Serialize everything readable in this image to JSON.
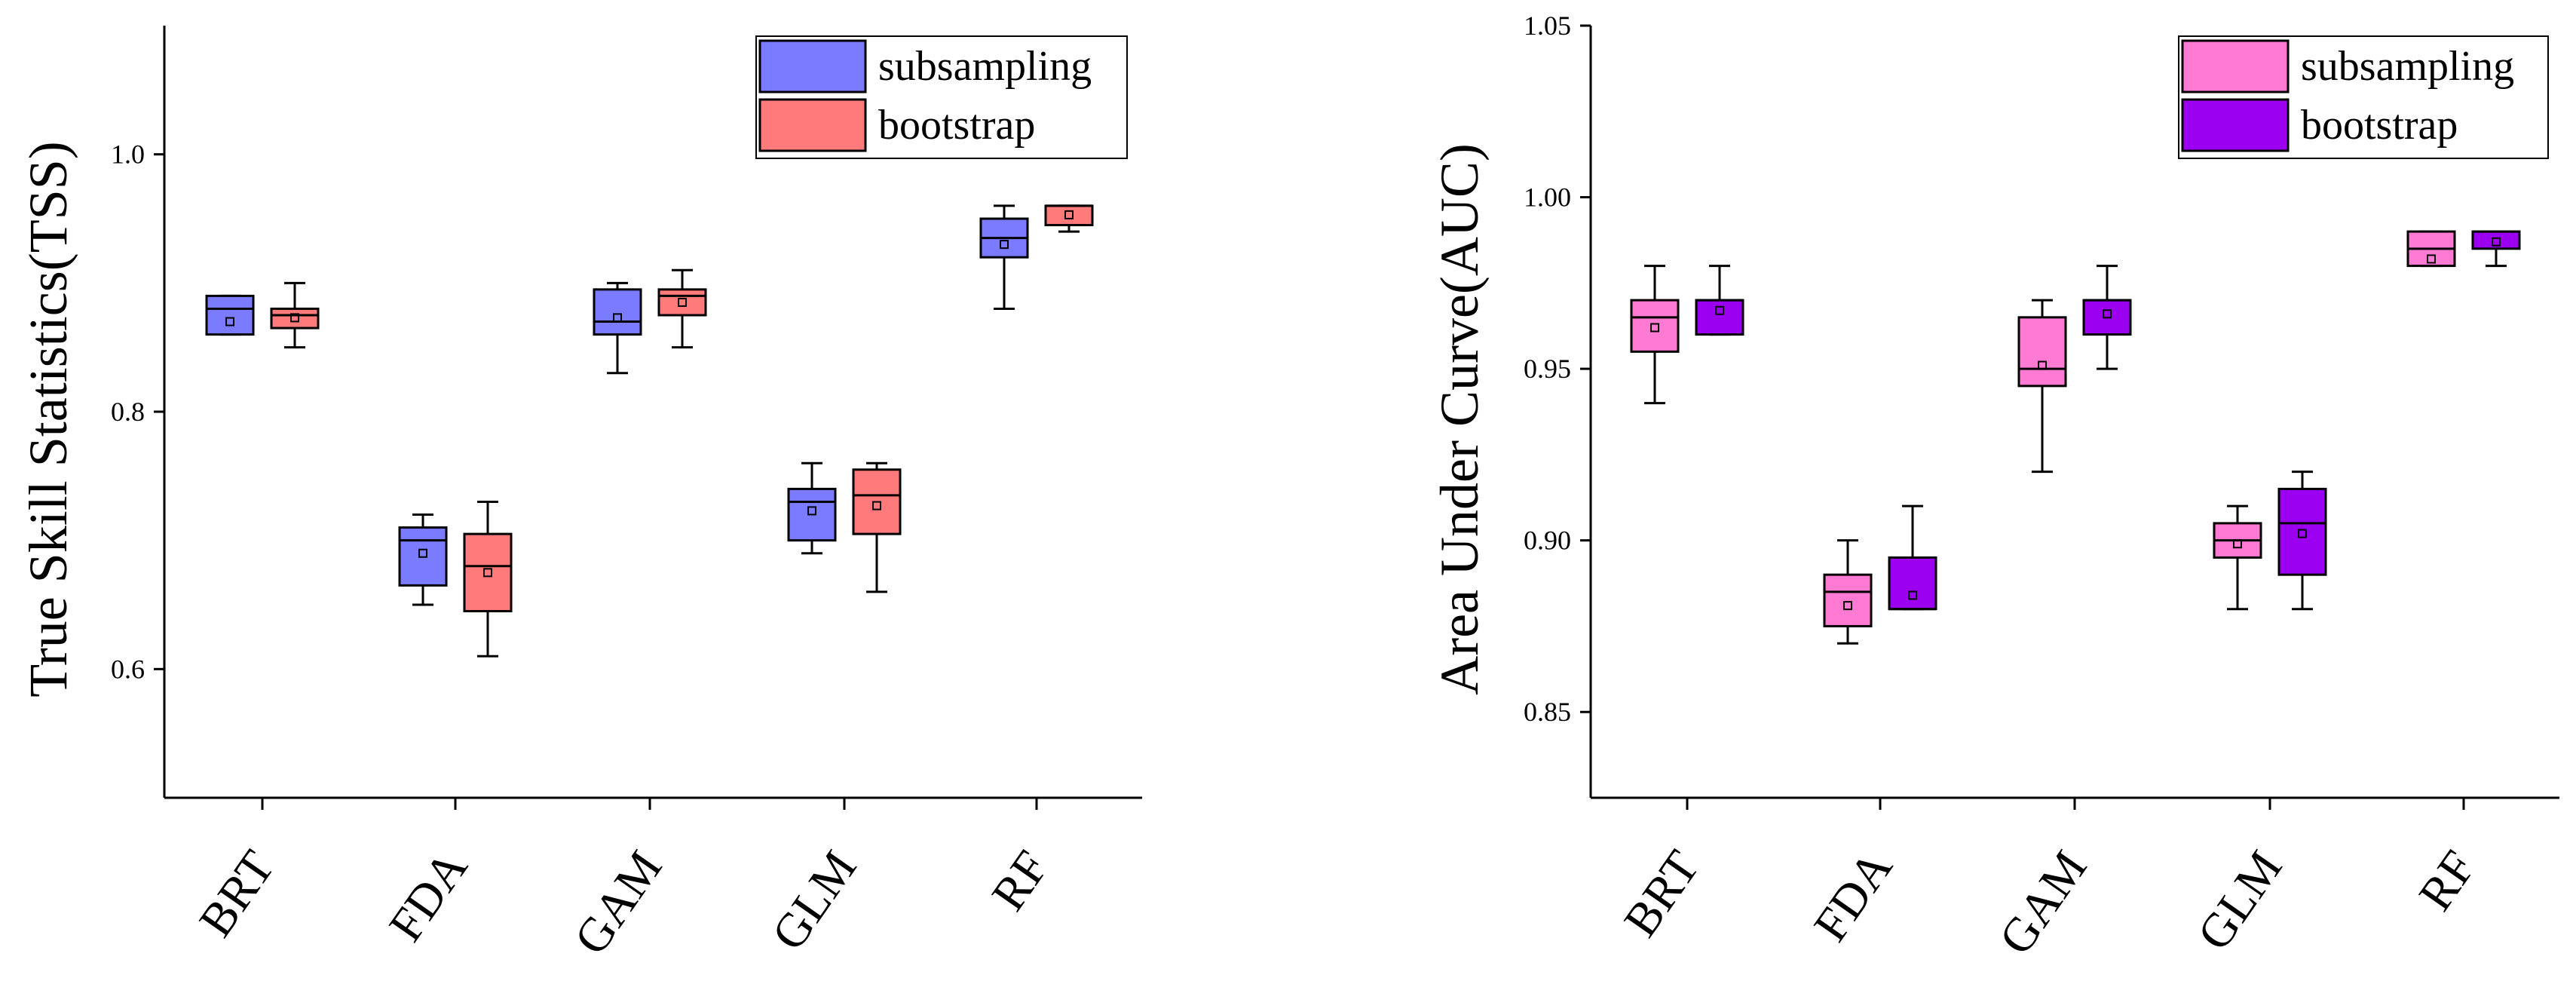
{
  "chart_data": [
    {
      "type": "box",
      "ylabel": "True Skill Statistics(TSS)",
      "ylim": [
        0.5,
        1.1
      ],
      "yticks": [
        0.6,
        0.8,
        1.0
      ],
      "ytick_labels": [
        "0.6",
        "0.8",
        "1.0"
      ],
      "categories": [
        "BRT",
        "FDA",
        "GAM",
        "GLM",
        "RF"
      ],
      "legend": {
        "placement": "top-right"
      },
      "series": [
        {
          "name": "subsampling",
          "color": "#7B7BFF",
          "boxes": [
            {
              "min": 0.86,
              "q1": 0.86,
              "median": 0.88,
              "q3": 0.89,
              "max": 0.89,
              "mean": 0.87
            },
            {
              "min": 0.65,
              "q1": 0.665,
              "median": 0.7,
              "q3": 0.71,
              "max": 0.72,
              "mean": 0.69
            },
            {
              "min": 0.83,
              "q1": 0.86,
              "median": 0.87,
              "q3": 0.895,
              "max": 0.9,
              "mean": 0.873
            },
            {
              "min": 0.69,
              "q1": 0.7,
              "median": 0.73,
              "q3": 0.74,
              "max": 0.76,
              "mean": 0.723
            },
            {
              "min": 0.88,
              "q1": 0.92,
              "median": 0.935,
              "q3": 0.95,
              "max": 0.96,
              "mean": 0.93
            }
          ]
        },
        {
          "name": "bootstrap",
          "color": "#FF7B7B",
          "boxes": [
            {
              "min": 0.85,
              "q1": 0.865,
              "median": 0.875,
              "q3": 0.88,
              "max": 0.9,
              "mean": 0.873
            },
            {
              "min": 0.61,
              "q1": 0.645,
              "median": 0.68,
              "q3": 0.705,
              "max": 0.73,
              "mean": 0.675
            },
            {
              "min": 0.85,
              "q1": 0.875,
              "median": 0.89,
              "q3": 0.895,
              "max": 0.91,
              "mean": 0.885
            },
            {
              "min": 0.66,
              "q1": 0.705,
              "median": 0.735,
              "q3": 0.755,
              "max": 0.76,
              "mean": 0.727
            },
            {
              "min": 0.94,
              "q1": 0.945,
              "median": 0.96,
              "q3": 0.96,
              "max": 0.96,
              "mean": 0.953
            }
          ]
        }
      ]
    },
    {
      "type": "box",
      "ylabel": "Area Under Curve(AUC)",
      "ylim": [
        0.825,
        1.05
      ],
      "yticks": [
        0.85,
        0.9,
        0.95,
        1.0,
        1.05
      ],
      "ytick_labels": [
        "0.85",
        "0.90",
        "0.95",
        "1.00",
        "1.05"
      ],
      "categories": [
        "BRT",
        "FDA",
        "GAM",
        "GLM",
        "RF"
      ],
      "legend": {
        "placement": "top-right"
      },
      "series": [
        {
          "name": "subsampling",
          "color": "#FF7BD3",
          "boxes": [
            {
              "min": 0.94,
              "q1": 0.955,
              "median": 0.965,
              "q3": 0.97,
              "max": 0.98,
              "mean": 0.962
            },
            {
              "min": 0.87,
              "q1": 0.875,
              "median": 0.885,
              "q3": 0.89,
              "max": 0.9,
              "mean": 0.881
            },
            {
              "min": 0.92,
              "q1": 0.945,
              "median": 0.95,
              "q3": 0.965,
              "max": 0.97,
              "mean": 0.951
            },
            {
              "min": 0.88,
              "q1": 0.895,
              "median": 0.9,
              "q3": 0.905,
              "max": 0.91,
              "mean": 0.899
            },
            {
              "min": 0.98,
              "q1": 0.98,
              "median": 0.985,
              "q3": 0.99,
              "max": 0.99,
              "mean": 0.982
            }
          ]
        },
        {
          "name": "bootstrap",
          "color": "#9B00F0",
          "boxes": [
            {
              "min": 0.96,
              "q1": 0.96,
              "median": 0.97,
              "q3": 0.97,
              "max": 0.98,
              "mean": 0.967
            },
            {
              "min": 0.88,
              "q1": 0.88,
              "median": 0.88,
              "q3": 0.895,
              "max": 0.91,
              "mean": 0.884
            },
            {
              "min": 0.95,
              "q1": 0.96,
              "median": 0.97,
              "q3": 0.97,
              "max": 0.98,
              "mean": 0.966
            },
            {
              "min": 0.88,
              "q1": 0.89,
              "median": 0.905,
              "q3": 0.915,
              "max": 0.92,
              "mean": 0.902
            },
            {
              "min": 0.98,
              "q1": 0.985,
              "median": 0.99,
              "q3": 0.99,
              "max": 0.99,
              "mean": 0.987
            }
          ]
        }
      ]
    }
  ]
}
